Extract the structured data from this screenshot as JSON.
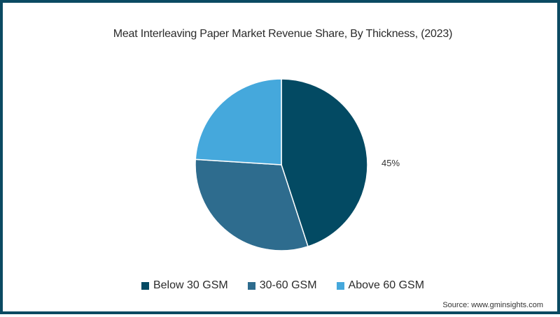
{
  "chart_data": {
    "type": "pie",
    "title": "Meat Interleaving Paper Market Revenue Share, By Thickness, (2023)",
    "categories": [
      "Below 30 GSM",
      "30-60 GSM",
      "Above 60 GSM"
    ],
    "values": [
      45,
      31,
      24
    ],
    "colors": [
      "#034a63",
      "#2e6c8e",
      "#45a8dc"
    ],
    "data_labels": [
      {
        "category": "Below 30 GSM",
        "label": "45%"
      }
    ],
    "legend_position": "bottom"
  },
  "title": "Meat Interleaving Paper Market Revenue Share, By Thickness, (2023)",
  "label_below30": "45%",
  "legend": [
    {
      "label": "Below 30 GSM",
      "color": "#034a63"
    },
    {
      "label": "30-60 GSM",
      "color": "#2e6c8e"
    },
    {
      "label": "Above 60 GSM",
      "color": "#45a8dc"
    }
  ],
  "source": "Source: www.gminsights.com"
}
